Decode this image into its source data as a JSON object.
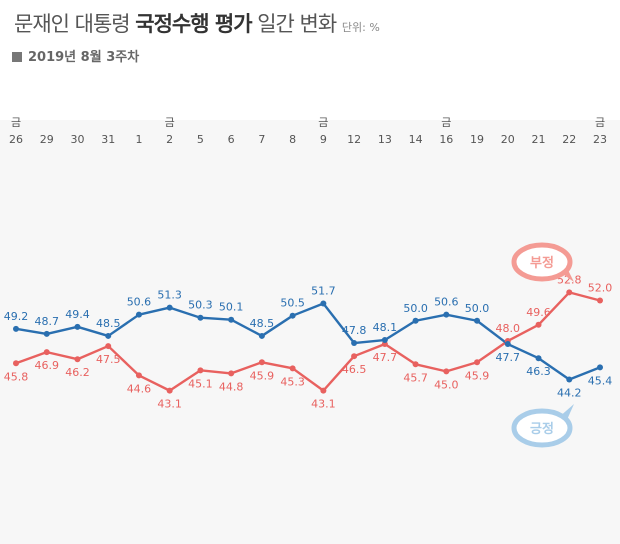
{
  "header": {
    "title_plain": "문재인 대통령",
    "title_bold": "국정수행 평가",
    "title_tail": "일간 변화",
    "unit": "단위: %",
    "subtitle": "2019년 8월 3주차"
  },
  "colors": {
    "positive": "#2a6fb0",
    "negative": "#e8615f",
    "positive_bubble": "#a9cde9",
    "negative_bubble": "#f49b94"
  },
  "chart_data": {
    "type": "line",
    "x": [
      "26",
      "29",
      "30",
      "31",
      "1",
      "2",
      "5",
      "6",
      "7",
      "8",
      "9",
      "12",
      "13",
      "14",
      "16",
      "19",
      "20",
      "21",
      "22",
      "23"
    ],
    "friday_marker": "금",
    "friday_indices": [
      0,
      5,
      10,
      14,
      19
    ],
    "series": [
      {
        "name": "긍정",
        "values": [
          49.2,
          48.7,
          49.4,
          48.5,
          50.6,
          51.3,
          50.3,
          50.1,
          48.5,
          50.5,
          51.7,
          47.8,
          48.1,
          50.0,
          50.6,
          50.0,
          47.7,
          46.3,
          44.2,
          45.4
        ]
      },
      {
        "name": "부정",
        "values": [
          45.8,
          46.9,
          46.2,
          47.5,
          44.6,
          43.1,
          45.1,
          44.8,
          45.9,
          45.3,
          43.1,
          46.5,
          47.7,
          45.7,
          45.0,
          45.9,
          48.0,
          49.6,
          52.8,
          52.0
        ]
      }
    ],
    "ylim": [
      40,
      56
    ],
    "legend_placement": "inline-right"
  }
}
